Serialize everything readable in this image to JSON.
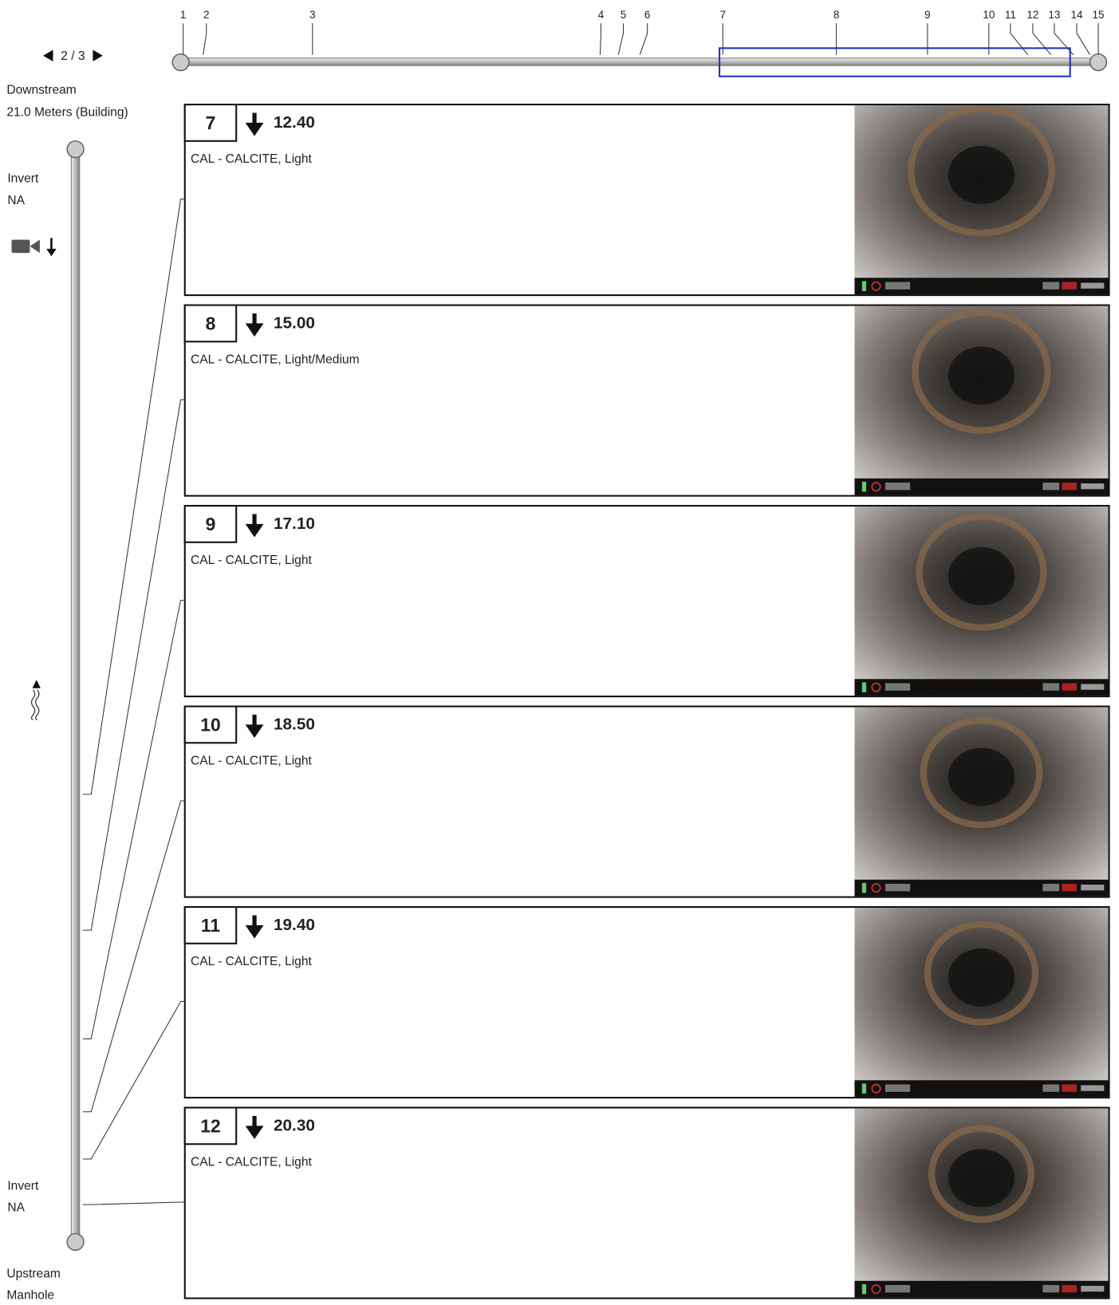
{
  "pager": {
    "text": "2 / 3"
  },
  "downstream": {
    "label": "Downstream",
    "length": "21.0 Meters (Building)"
  },
  "top_invert": {
    "label": "Invert",
    "value": "NA"
  },
  "bottom_invert": {
    "label": "Invert",
    "value": "NA"
  },
  "upstream": {
    "label": "Upstream",
    "name": "Manhole"
  },
  "ruler": {
    "markers": [
      "1",
      "2",
      "3",
      "4",
      "5",
      "6",
      "7",
      "8",
      "9",
      "10",
      "11",
      "12",
      "13",
      "14",
      "15"
    ]
  },
  "observations": [
    {
      "number": "7",
      "distance": "12.40",
      "description": "CAL - CALCITE, Light"
    },
    {
      "number": "8",
      "distance": "15.00",
      "description": "CAL - CALCITE, Light/Medium"
    },
    {
      "number": "9",
      "distance": "17.10",
      "description": "CAL - CALCITE, Light"
    },
    {
      "number": "10",
      "distance": "18.50",
      "description": "CAL - CALCITE, Light"
    },
    {
      "number": "11",
      "distance": "19.40",
      "description": "CAL - CALCITE, Light"
    },
    {
      "number": "12",
      "distance": "20.30",
      "description": "CAL - CALCITE, Light"
    }
  ]
}
